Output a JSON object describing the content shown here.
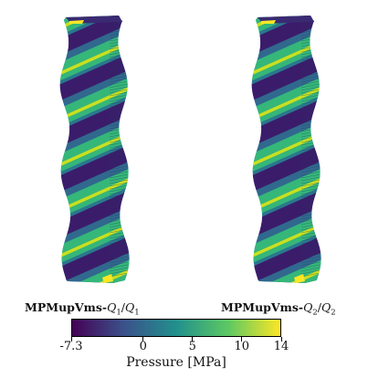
{
  "renders": [
    {
      "caption_prefix": "MPMupVms-",
      "caption_q": "Q",
      "caption_sub1": "1",
      "caption_slash": "/",
      "caption_sub2": "1"
    },
    {
      "caption_prefix": "MPMupVms-",
      "caption_q": "Q",
      "caption_sub1": "2",
      "caption_slash": "/",
      "caption_sub2": "2"
    }
  ],
  "colorbar": {
    "title": "Pressure [MPa]",
    "min": -7.3,
    "max": 14,
    "ticks": [
      {
        "value": -7.3,
        "label": "-7.3"
      },
      {
        "value": 0,
        "label": "0"
      },
      {
        "value": 5,
        "label": "5"
      },
      {
        "value": 10,
        "label": "10"
      },
      {
        "value": 14,
        "label": "14"
      }
    ],
    "colormap": "viridis",
    "colors": [
      "#440154",
      "#3b528b",
      "#21908c",
      "#5dc863",
      "#fde725"
    ]
  }
}
